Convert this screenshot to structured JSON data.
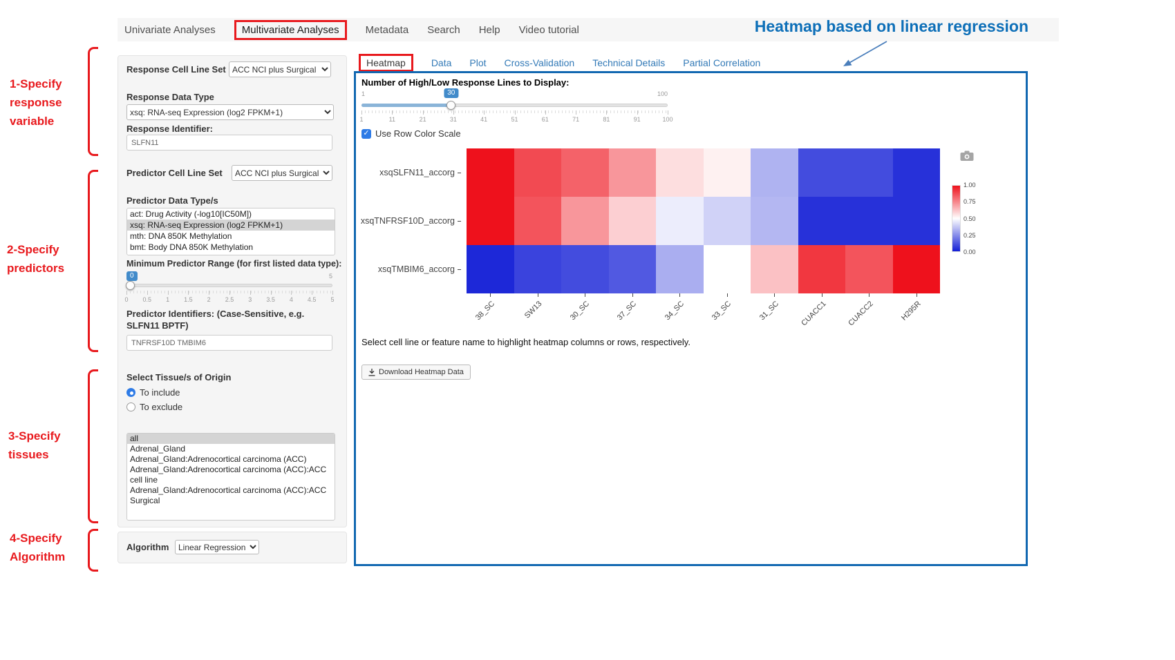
{
  "annotations": {
    "heading": "Heatmap based on linear regression",
    "steps": [
      "1-Specify response variable",
      "2-Specify predictors",
      "3-Specify tissues",
      "4-Specify Algorithm"
    ]
  },
  "nav": {
    "items": [
      "Univariate Analyses",
      "Multivariate Analyses",
      "Metadata",
      "Search",
      "Help",
      "Video tutorial"
    ],
    "active": "Multivariate Analyses"
  },
  "sidebar": {
    "response_cell_line_set": {
      "label": "Response Cell Line Set",
      "value": "ACC NCI plus Surgical"
    },
    "response_data_type": {
      "label": "Response Data Type",
      "value": "xsq: RNA-seq Expression (log2 FPKM+1)"
    },
    "response_identifier": {
      "label": "Response Identifier:",
      "value": "SLFN11"
    },
    "predictor_cell_line_set": {
      "label": "Predictor Cell Line Set",
      "value": "ACC NCI plus Surgical"
    },
    "predictor_data_types": {
      "label": "Predictor Data Type/s",
      "options": [
        "act: Drug Activity (-log10[IC50M])",
        "xsq: RNA-seq Expression (log2 FPKM+1)",
        "mth: DNA 850K Methylation",
        "bmt: Body DNA 850K Methylation"
      ],
      "selected": "xsq: RNA-seq Expression (log2 FPKM+1)"
    },
    "min_predictor_range": {
      "label": "Minimum Predictor Range (for first listed data type):",
      "value_label": "0",
      "max_label": "5",
      "ticks": [
        "0",
        "0.5",
        "1",
        "1.5",
        "2",
        "2.5",
        "3",
        "3.5",
        "4",
        "4.5",
        "5"
      ]
    },
    "predictor_identifiers": {
      "label": "Predictor Identifiers: (Case-Sensitive, e.g. SLFN11 BPTF)",
      "value": "TNFRSF10D TMBIM6"
    },
    "tissue": {
      "label": "Select Tissue/s of Origin",
      "radio_include": "To include",
      "radio_exclude": "To exclude",
      "radio_selected": "To include",
      "options": [
        "all",
        "Adrenal_Gland",
        "Adrenal_Gland:Adrenocortical carcinoma (ACC)",
        "Adrenal_Gland:Adrenocortical carcinoma (ACC):ACC cell line",
        "Adrenal_Gland:Adrenocortical carcinoma (ACC):ACC Surgical"
      ],
      "selected": "all"
    },
    "algorithm": {
      "label": "Algorithm",
      "value": "Linear Regression"
    }
  },
  "main": {
    "tabs": [
      "Heatmap",
      "Data",
      "Plot",
      "Cross-Validation",
      "Technical Details",
      "Partial Correlation"
    ],
    "active_tab": "Heatmap",
    "lines_slider": {
      "label": "Number of High/Low Response Lines to Display:",
      "min_label": "1",
      "max_label": "100",
      "value_label": "30",
      "ticks": [
        "1",
        "11",
        "21",
        "31",
        "41",
        "51",
        "61",
        "71",
        "81",
        "91",
        "100"
      ]
    },
    "row_color_scale_label": "Use Row Color Scale",
    "row_color_scale_checked": true,
    "hint": "Select cell line or feature name to highlight heatmap columns or rows, respectively.",
    "download_button": "Download Heatmap Data"
  },
  "chart_data": {
    "type": "heatmap",
    "x": [
      "38_SC",
      "SW13",
      "30_SC",
      "37_SC",
      "34_SC",
      "33_SC",
      "31_SC",
      "CUACC1",
      "CUACC2",
      "H295R"
    ],
    "y": [
      "xsqSLFN11_accorg",
      "xsqTNFRSF10D_accorg",
      "xsqTMBIM6_accorg"
    ],
    "values": [
      [
        1.0,
        0.88,
        0.83,
        0.72,
        0.57,
        0.53,
        0.33,
        0.1,
        0.1,
        0.04
      ],
      [
        1.0,
        0.86,
        0.72,
        0.6,
        0.46,
        0.4,
        0.34,
        0.04,
        0.04,
        0.04
      ],
      [
        0.02,
        0.08,
        0.1,
        0.13,
        0.32,
        0.5,
        0.63,
        0.92,
        0.86,
        1.0
      ]
    ],
    "colorscale": {
      "high": "#ee111c",
      "mid": "#ffffff",
      "low": "#141fd6"
    },
    "colorbar_ticks": [
      "1.00",
      "0.75",
      "0.50",
      "0.25",
      "0.00"
    ],
    "legend_position": "right"
  }
}
